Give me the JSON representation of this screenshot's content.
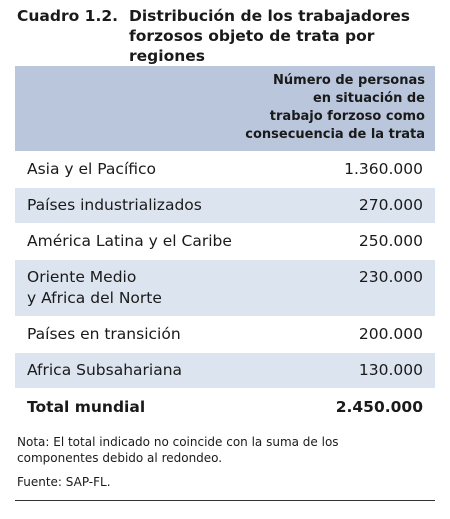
{
  "title": {
    "number": "Cuadro 1.2.",
    "line1": "Distribución de los trabajadores",
    "line2": "forzosos objeto de trata por regiones"
  },
  "header": {
    "line1": "Número de personas",
    "line2": "en situación de",
    "line3": "trabajo forzoso como",
    "line4": "consecuencia de la trata"
  },
  "rows": [
    {
      "label": "Asia y el Pacífico",
      "value": "1.360.000"
    },
    {
      "label": "Países industrializados",
      "value": "270.000"
    },
    {
      "label": "América Latina y el Caribe",
      "value": "250.000"
    },
    {
      "label_line1": "Oriente Medio",
      "label_line2": "y Africa del Norte",
      "value": "230.000"
    },
    {
      "label": "Países en transición",
      "value": "200.000"
    },
    {
      "label": "Africa Subsahariana",
      "value": "130.000"
    }
  ],
  "total": {
    "label": "Total mundial",
    "value": "2.450.000"
  },
  "note": {
    "line1": "Nota: El total indicado no coincide con la suma de los",
    "line2": "componentes debido al redondeo."
  },
  "source": "Fuente: SAP-FL."
}
